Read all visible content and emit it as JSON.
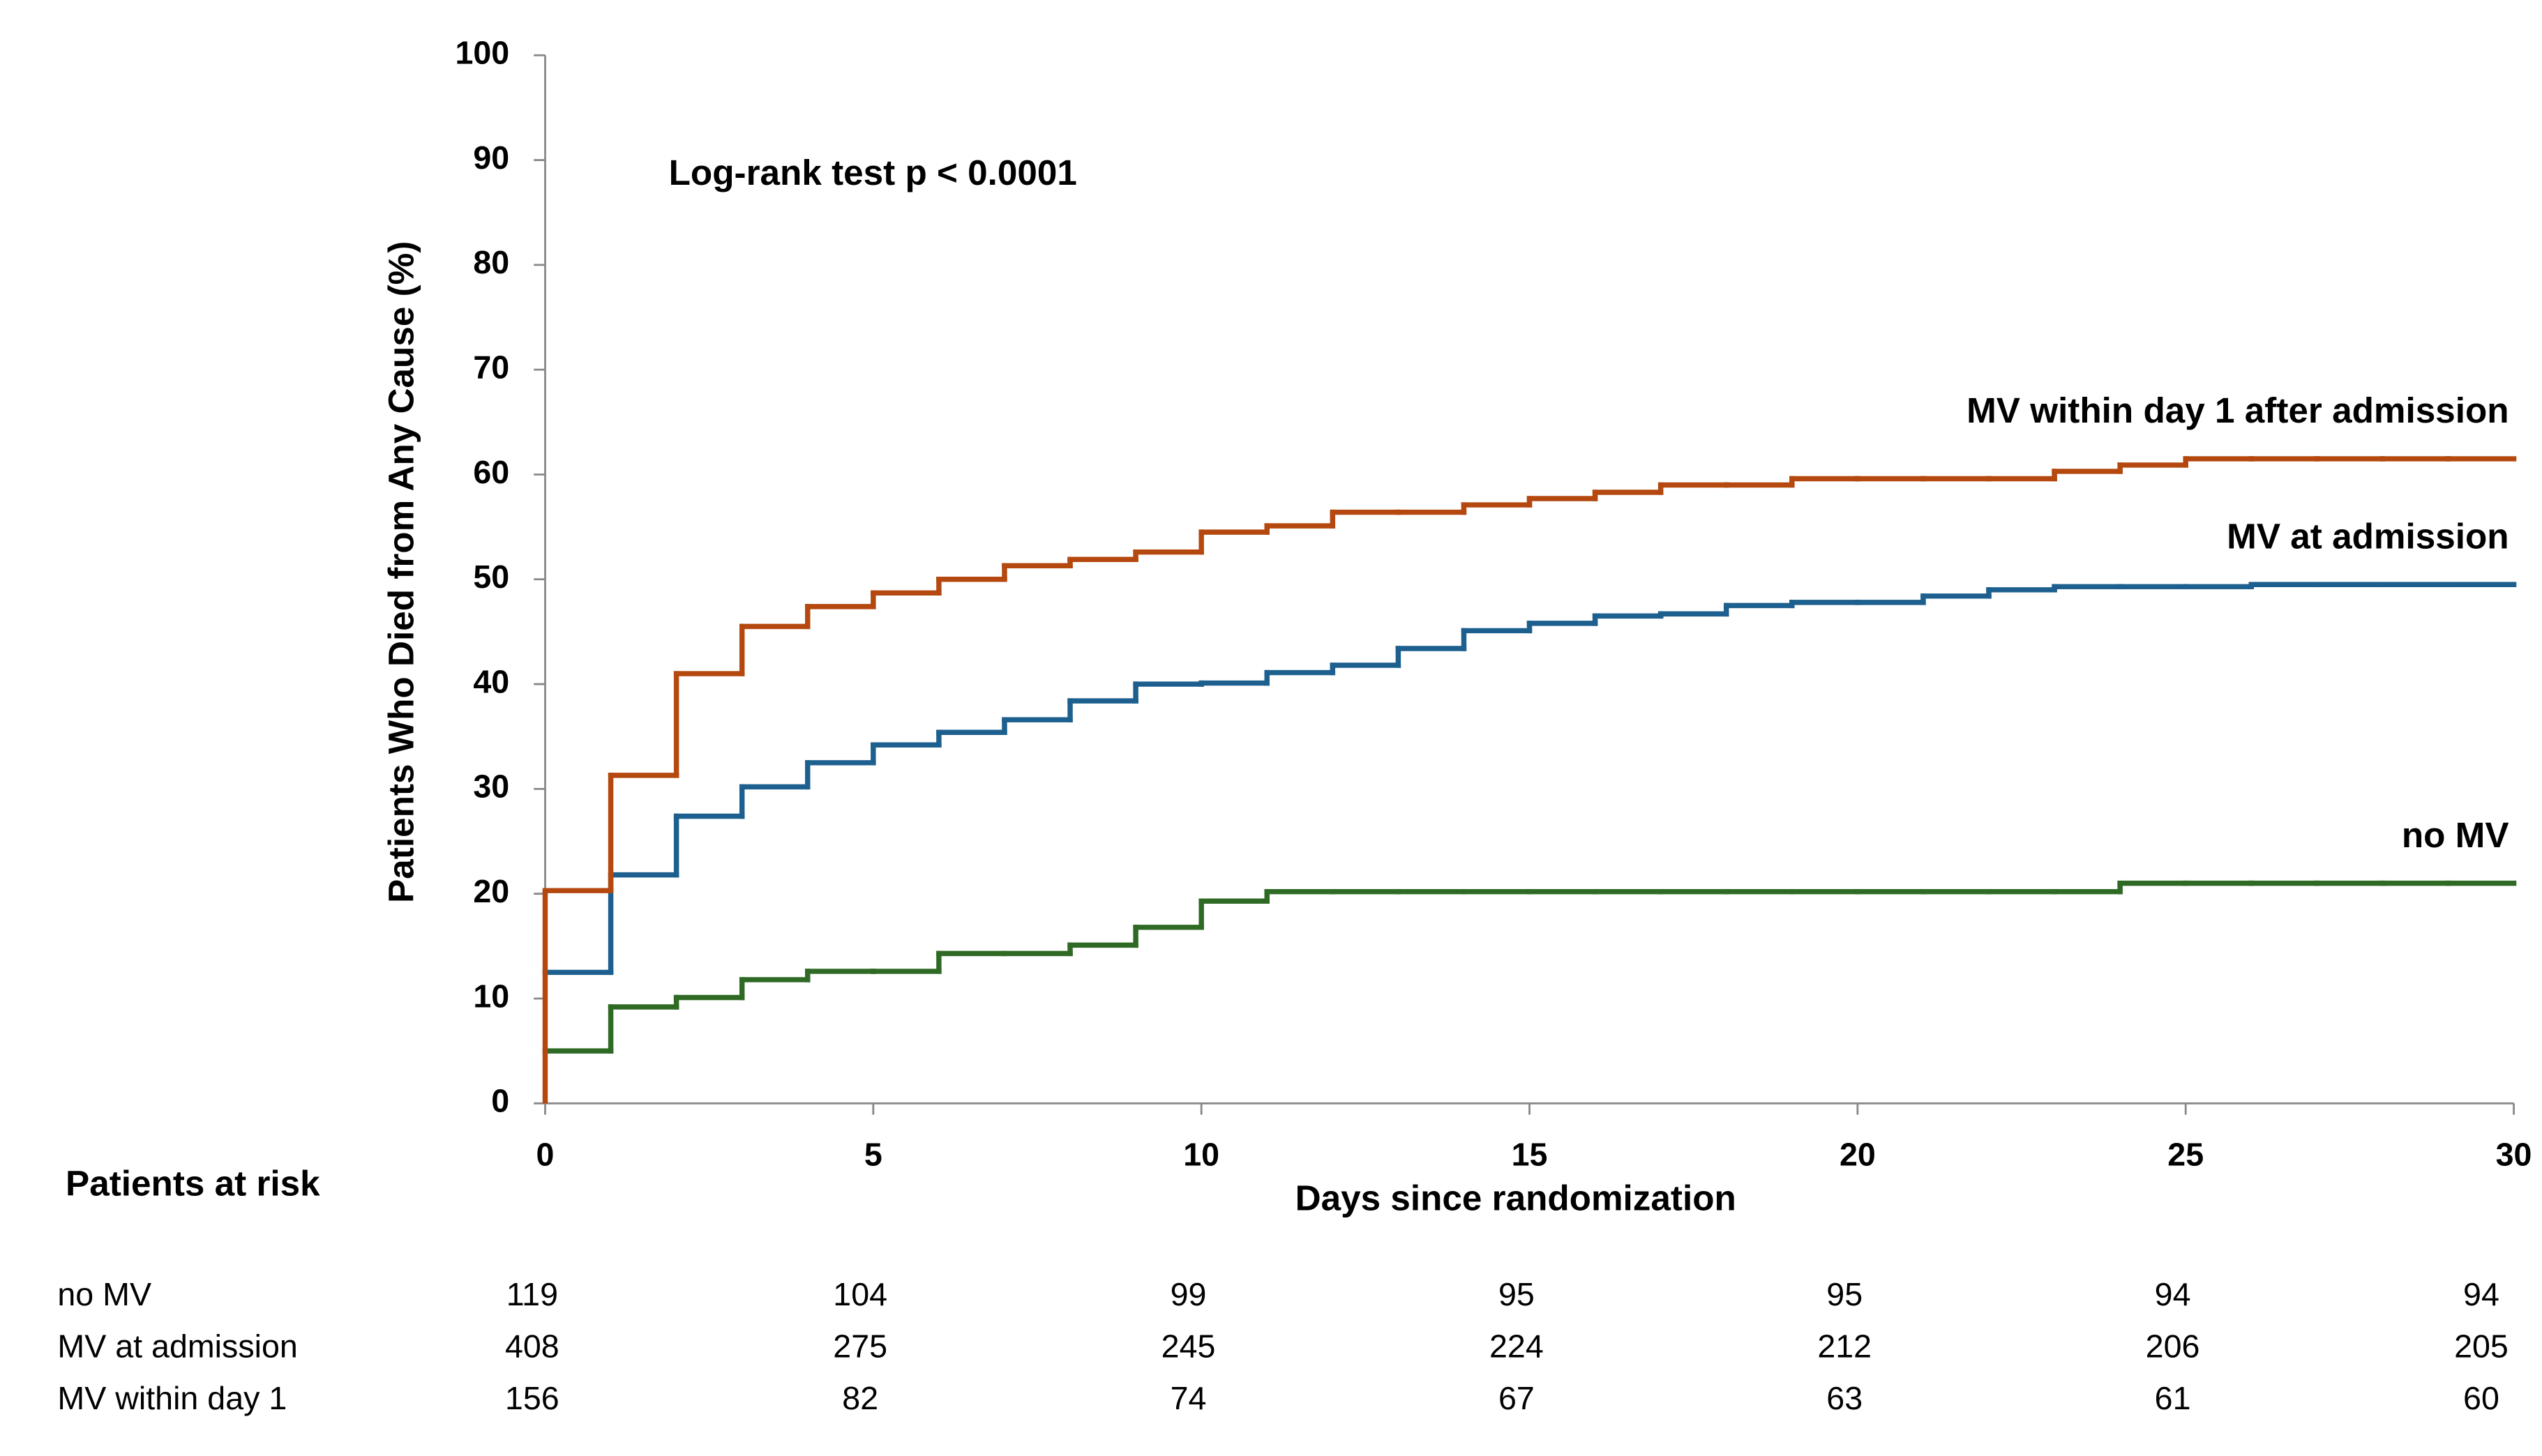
{
  "chart_data": {
    "type": "line",
    "step": "post",
    "annotation": "Log-rank test p < 0.0001",
    "xlabel": "Days since randomization",
    "ylabel": "Patients Who Died from Any Cause  (%)",
    "x": [
      0,
      1,
      2,
      3,
      4,
      5,
      6,
      7,
      8,
      9,
      10,
      11,
      12,
      13,
      14,
      15,
      16,
      17,
      18,
      19,
      20,
      21,
      22,
      23,
      24,
      25,
      26,
      27,
      28,
      29
    ],
    "series": [
      {
        "name": "MV within day 1 after admission",
        "color": "#b4480f",
        "values": [
          20.3,
          31.3,
          41,
          45.5,
          47.4,
          48.7,
          50,
          51.3,
          51.9,
          52.6,
          54.5,
          55.1,
          56.4,
          56.4,
          57.1,
          57.7,
          58.3,
          59,
          59,
          59.6,
          59.6,
          59.6,
          59.6,
          60.3,
          60.9,
          61.5,
          61.5,
          61.5,
          61.5,
          61.5
        ]
      },
      {
        "name": "MV at admission",
        "color": "#1d5f8e",
        "values": [
          12.5,
          21.8,
          27.4,
          30.2,
          32.5,
          34.2,
          35.4,
          36.6,
          38.4,
          40,
          40.1,
          41.1,
          41.8,
          43.4,
          45.1,
          45.8,
          46.5,
          46.7,
          47.5,
          47.8,
          47.8,
          48.4,
          49,
          49.3,
          49.3,
          49.3,
          49.5,
          49.5,
          49.5,
          49.5
        ]
      },
      {
        "name": "no MV",
        "color": "#2f6a24",
        "values": [
          5,
          9.2,
          10.1,
          11.8,
          12.6,
          12.6,
          14.3,
          14.3,
          15.1,
          16.8,
          19.3,
          20.2,
          20.2,
          20.2,
          20.2,
          20.2,
          20.2,
          20.2,
          20.2,
          20.2,
          20.2,
          20.2,
          20.2,
          20.2,
          21,
          21,
          21,
          21,
          21,
          21
        ]
      }
    ],
    "xlim": [
      0,
      30
    ],
    "xticks": [
      0,
      5,
      10,
      15,
      20,
      25,
      30
    ],
    "ylim": [
      0,
      100
    ],
    "yticks": [
      0,
      10,
      20,
      30,
      40,
      50,
      60,
      70,
      80,
      90,
      100
    ],
    "grid": false
  },
  "risk_table": {
    "title": "Patients at risk",
    "rows": [
      {
        "label": "no MV",
        "values": [
          119,
          104,
          99,
          95,
          95,
          94,
          94
        ]
      },
      {
        "label": "MV at admission",
        "values": [
          408,
          275,
          245,
          224,
          212,
          206,
          205
        ]
      },
      {
        "label": "MV within day 1",
        "values": [
          156,
          82,
          74,
          67,
          63,
          61,
          60
        ]
      }
    ]
  }
}
